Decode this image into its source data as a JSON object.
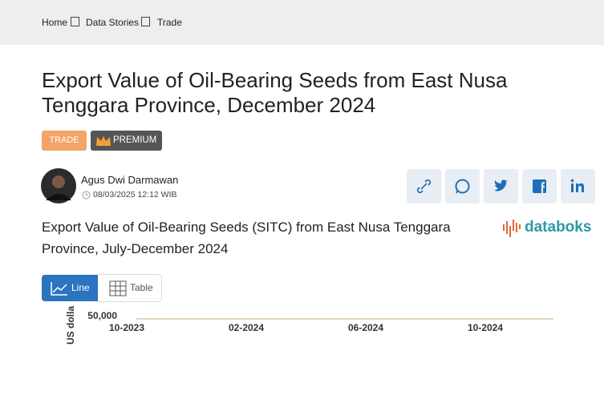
{
  "breadcrumbs": [
    "Home",
    "Data Stories",
    "Trade"
  ],
  "article": {
    "title": "Export Value of Oil-Bearing Seeds from East Nusa Tenggara Province, December 2024",
    "tags": [
      "TRADE",
      "PREMIUM"
    ],
    "author": "Agus Dwi Darmawan",
    "date": "08/03/2025 12:12 WIB"
  },
  "chart_section": {
    "title": "Export Value of Oil-Bearing Seeds (SITC) from East Nusa Tenggara Province, July-December 2024",
    "brand": "databoks",
    "view_options": [
      "Line",
      "Table"
    ],
    "chart_data": {
      "type": "line",
      "ylabel": "US dolla",
      "yticks": [
        {
          "value": 50000,
          "label": "50,000"
        }
      ],
      "x_tick_labels": [
        "10-2023",
        "02-2024",
        "06-2024",
        "10-2024"
      ]
    }
  }
}
